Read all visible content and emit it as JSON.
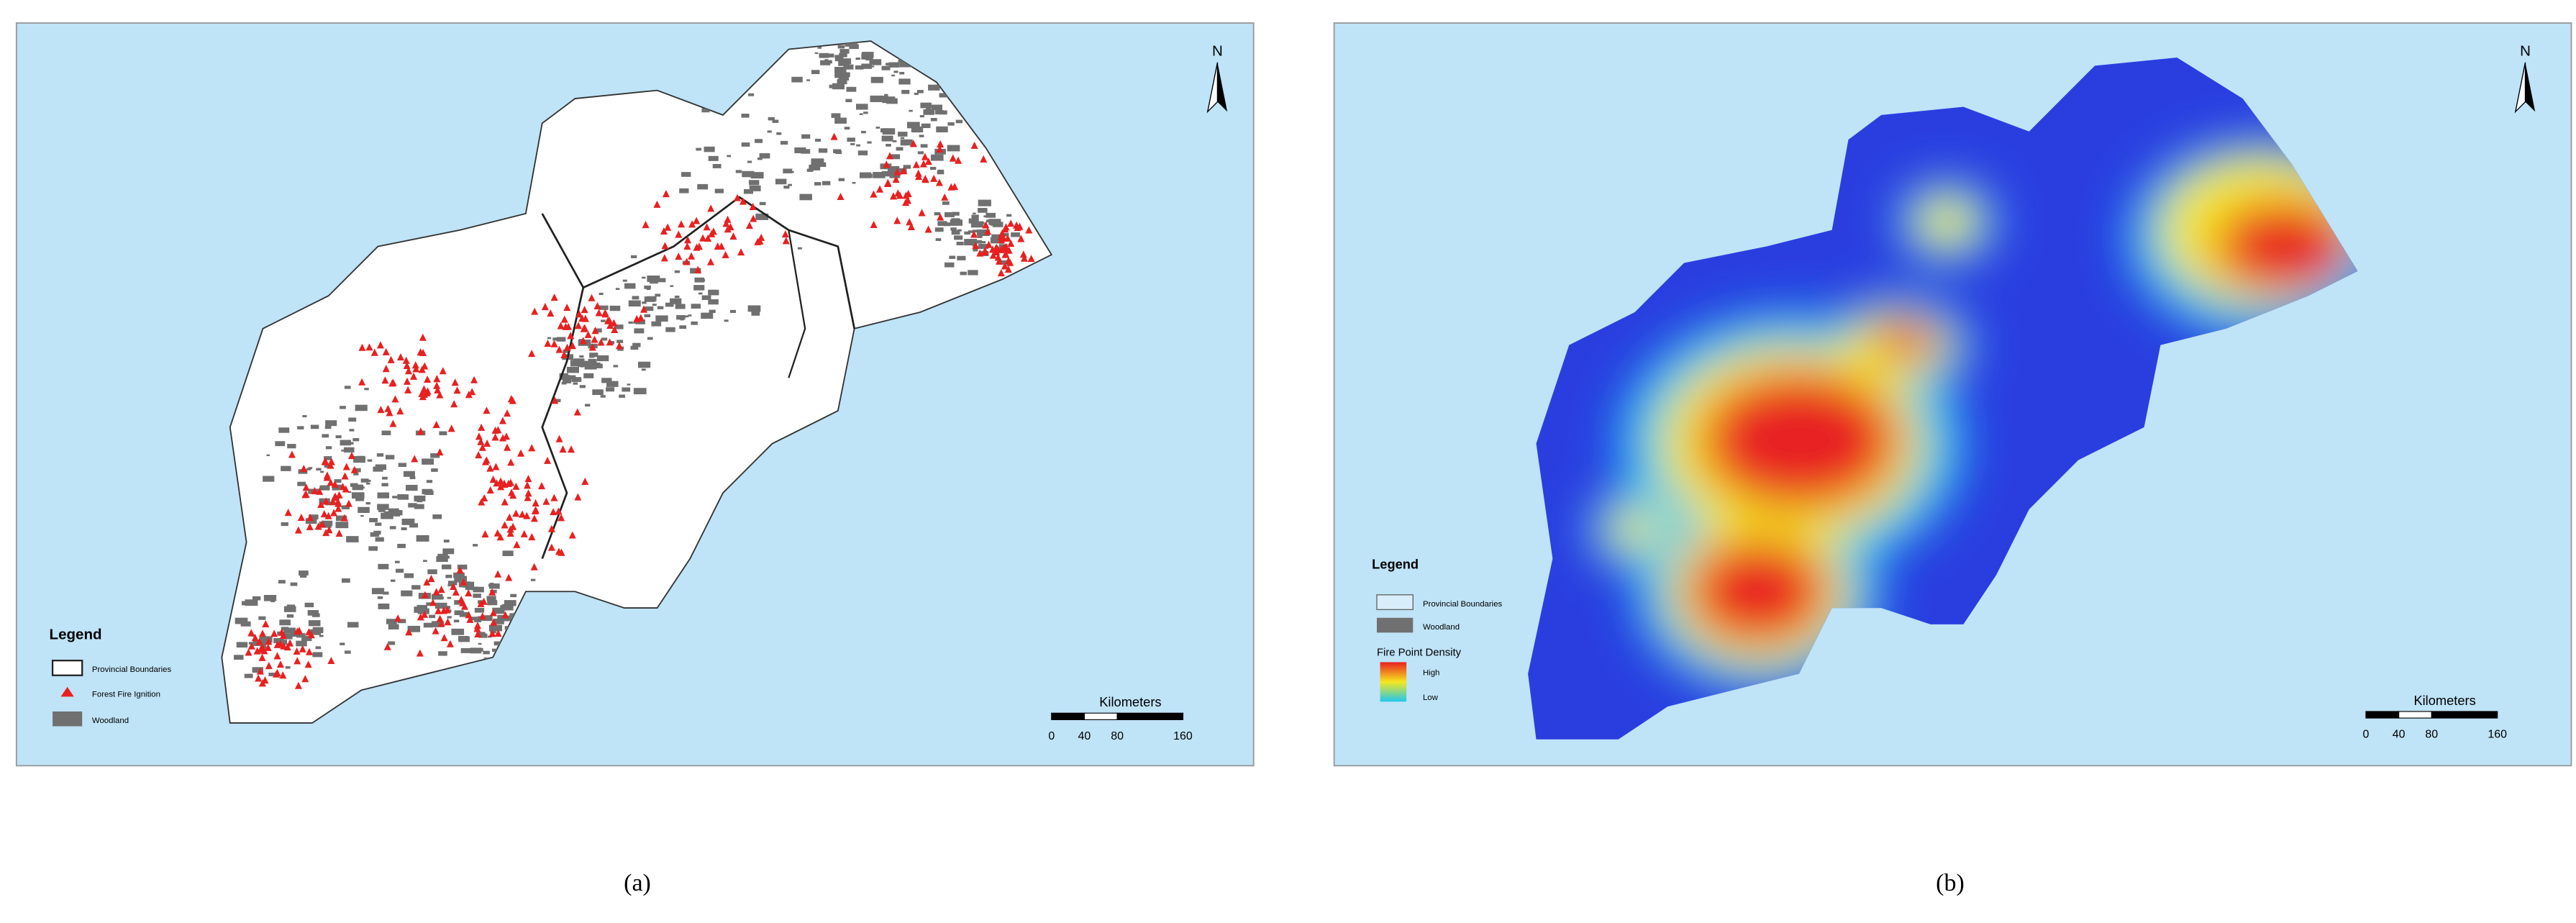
{
  "panels": [
    {
      "label": "(a)",
      "north": "N",
      "legend": {
        "title": "Legend",
        "items": [
          "Provincial Boundaries",
          "Forest Fire Ignition",
          "Woodland"
        ]
      },
      "scale_bar": {
        "title": "Kilometers",
        "ticks": [
          "0",
          "40",
          "80",
          "160"
        ]
      }
    },
    {
      "label": "(b)",
      "north": "N",
      "legend": {
        "title": "Legend",
        "items": [
          "Provincial Boundaries",
          "Woodland"
        ],
        "density_title": "Fire Point Density",
        "high": "High",
        "low": "Low"
      },
      "scale_bar": {
        "title": "Kilometers",
        "ticks": [
          "0",
          "40",
          "80",
          "160"
        ]
      }
    }
  ]
}
